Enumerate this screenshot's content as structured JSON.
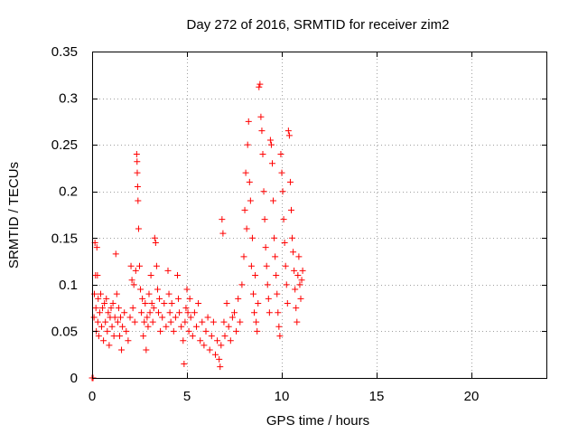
{
  "chart_data": {
    "type": "scatter",
    "title": "Day 272 of 2016, SRMTID for receiver zim2",
    "xlabel": "GPS time / hours",
    "ylabel": "SRMTID / TECUs",
    "xlim": [
      0,
      24
    ],
    "ylim": [
      0,
      0.35
    ],
    "xticks": [
      0,
      5,
      10,
      15,
      20
    ],
    "yticks": [
      0,
      0.05,
      0.1,
      0.15,
      0.2,
      0.25,
      0.3,
      0.35
    ],
    "ytick_labels": [
      "0",
      "0.05",
      "0.1",
      "0.15",
      "0.2",
      "0.25",
      "0.3",
      "0.35"
    ],
    "grid": true,
    "marker": "+",
    "series_color": "#ff0000",
    "series": [
      {
        "name": "SRMTID",
        "points": [
          [
            0.0,
            0.0
          ],
          [
            0.02,
            0.0
          ],
          [
            0.05,
            0.0
          ],
          [
            0.1,
            0.065
          ],
          [
            0.12,
            0.09
          ],
          [
            0.15,
            0.145
          ],
          [
            0.18,
            0.11
          ],
          [
            0.2,
            0.075
          ],
          [
            0.22,
            0.05
          ],
          [
            0.25,
            0.14
          ],
          [
            0.28,
            0.11
          ],
          [
            0.3,
            0.06
          ],
          [
            0.32,
            0.085
          ],
          [
            0.35,
            0.045
          ],
          [
            0.4,
            0.07
          ],
          [
            0.45,
            0.09
          ],
          [
            0.5,
            0.055
          ],
          [
            0.55,
            0.075
          ],
          [
            0.6,
            0.04
          ],
          [
            0.65,
            0.08
          ],
          [
            0.7,
            0.06
          ],
          [
            0.75,
            0.085
          ],
          [
            0.8,
            0.05
          ],
          [
            0.85,
            0.07
          ],
          [
            0.9,
            0.035
          ],
          [
            0.95,
            0.065
          ],
          [
            1.0,
            0.075
          ],
          [
            1.05,
            0.055
          ],
          [
            1.1,
            0.08
          ],
          [
            1.15,
            0.045
          ],
          [
            1.2,
            0.065
          ],
          [
            1.25,
            0.133
          ],
          [
            1.3,
            0.09
          ],
          [
            1.35,
            0.06
          ],
          [
            1.4,
            0.075
          ],
          [
            1.45,
            0.045
          ],
          [
            1.5,
            0.065
          ],
          [
            1.55,
            0.03
          ],
          [
            1.6,
            0.055
          ],
          [
            1.7,
            0.07
          ],
          [
            1.8,
            0.05
          ],
          [
            1.9,
            0.04
          ],
          [
            2.0,
            0.065
          ],
          [
            2.05,
            0.12
          ],
          [
            2.1,
            0.105
          ],
          [
            2.15,
            0.075
          ],
          [
            2.2,
            0.1
          ],
          [
            2.25,
            0.06
          ],
          [
            2.3,
            0.115
          ],
          [
            2.35,
            0.24
          ],
          [
            2.37,
            0.232
          ],
          [
            2.38,
            0.22
          ],
          [
            2.4,
            0.205
          ],
          [
            2.42,
            0.19
          ],
          [
            2.45,
            0.16
          ],
          [
            2.5,
            0.12
          ],
          [
            2.55,
            0.095
          ],
          [
            2.6,
            0.07
          ],
          [
            2.65,
            0.085
          ],
          [
            2.7,
            0.045
          ],
          [
            2.75,
            0.06
          ],
          [
            2.8,
            0.08
          ],
          [
            2.85,
            0.03
          ],
          [
            2.9,
            0.065
          ],
          [
            2.95,
            0.055
          ],
          [
            3.0,
            0.09
          ],
          [
            3.05,
            0.07
          ],
          [
            3.1,
            0.11
          ],
          [
            3.15,
            0.08
          ],
          [
            3.2,
            0.06
          ],
          [
            3.25,
            0.075
          ],
          [
            3.3,
            0.15
          ],
          [
            3.35,
            0.145
          ],
          [
            3.4,
            0.12
          ],
          [
            3.45,
            0.095
          ],
          [
            3.5,
            0.07
          ],
          [
            3.55,
            0.085
          ],
          [
            3.6,
            0.05
          ],
          [
            3.7,
            0.065
          ],
          [
            3.8,
            0.08
          ],
          [
            3.9,
            0.055
          ],
          [
            4.0,
            0.115
          ],
          [
            4.05,
            0.09
          ],
          [
            4.1,
            0.07
          ],
          [
            4.15,
            0.06
          ],
          [
            4.2,
            0.08
          ],
          [
            4.3,
            0.05
          ],
          [
            4.4,
            0.065
          ],
          [
            4.5,
            0.11
          ],
          [
            4.55,
            0.085
          ],
          [
            4.6,
            0.07
          ],
          [
            4.7,
            0.055
          ],
          [
            4.8,
            0.04
          ],
          [
            4.85,
            0.015
          ],
          [
            4.9,
            0.06
          ],
          [
            4.95,
            0.075
          ],
          [
            5.0,
            0.095
          ],
          [
            5.05,
            0.07
          ],
          [
            5.1,
            0.05
          ],
          [
            5.15,
            0.085
          ],
          [
            5.2,
            0.065
          ],
          [
            5.3,
            0.045
          ],
          [
            5.4,
            0.07
          ],
          [
            5.5,
            0.055
          ],
          [
            5.6,
            0.08
          ],
          [
            5.7,
            0.04
          ],
          [
            5.8,
            0.06
          ],
          [
            5.9,
            0.035
          ],
          [
            6.0,
            0.05
          ],
          [
            6.1,
            0.065
          ],
          [
            6.2,
            0.03
          ],
          [
            6.3,
            0.045
          ],
          [
            6.4,
            0.06
          ],
          [
            6.5,
            0.025
          ],
          [
            6.6,
            0.04
          ],
          [
            6.7,
            0.02
          ],
          [
            6.75,
            0.012
          ],
          [
            6.8,
            0.035
          ],
          [
            6.85,
            0.17
          ],
          [
            6.9,
            0.155
          ],
          [
            6.95,
            0.06
          ],
          [
            7.0,
            0.045
          ],
          [
            7.1,
            0.08
          ],
          [
            7.2,
            0.055
          ],
          [
            7.3,
            0.04
          ],
          [
            7.4,
            0.065
          ],
          [
            7.5,
            0.07
          ],
          [
            7.6,
            0.05
          ],
          [
            7.7,
            0.085
          ],
          [
            7.8,
            0.06
          ],
          [
            7.9,
            0.1
          ],
          [
            8.0,
            0.13
          ],
          [
            8.05,
            0.18
          ],
          [
            8.1,
            0.22
          ],
          [
            8.15,
            0.16
          ],
          [
            8.2,
            0.25
          ],
          [
            8.25,
            0.275
          ],
          [
            8.3,
            0.21
          ],
          [
            8.35,
            0.19
          ],
          [
            8.4,
            0.12
          ],
          [
            8.45,
            0.15
          ],
          [
            8.5,
            0.09
          ],
          [
            8.55,
            0.07
          ],
          [
            8.6,
            0.11
          ],
          [
            8.65,
            0.06
          ],
          [
            8.7,
            0.05
          ],
          [
            8.75,
            0.08
          ],
          [
            8.8,
            0.312
          ],
          [
            8.85,
            0.315
          ],
          [
            8.9,
            0.28
          ],
          [
            8.95,
            0.265
          ],
          [
            9.0,
            0.24
          ],
          [
            9.05,
            0.2
          ],
          [
            9.1,
            0.17
          ],
          [
            9.15,
            0.14
          ],
          [
            9.2,
            0.12
          ],
          [
            9.25,
            0.1
          ],
          [
            9.3,
            0.085
          ],
          [
            9.35,
            0.07
          ],
          [
            9.4,
            0.255
          ],
          [
            9.45,
            0.25
          ],
          [
            9.5,
            0.23
          ],
          [
            9.55,
            0.19
          ],
          [
            9.6,
            0.15
          ],
          [
            9.65,
            0.13
          ],
          [
            9.7,
            0.11
          ],
          [
            9.75,
            0.09
          ],
          [
            9.8,
            0.07
          ],
          [
            9.85,
            0.055
          ],
          [
            9.9,
            0.045
          ],
          [
            9.95,
            0.24
          ],
          [
            10.0,
            0.22
          ],
          [
            10.05,
            0.2
          ],
          [
            10.1,
            0.17
          ],
          [
            10.15,
            0.145
          ],
          [
            10.2,
            0.12
          ],
          [
            10.25,
            0.1
          ],
          [
            10.3,
            0.08
          ],
          [
            10.35,
            0.265
          ],
          [
            10.4,
            0.26
          ],
          [
            10.45,
            0.21
          ],
          [
            10.5,
            0.18
          ],
          [
            10.55,
            0.15
          ],
          [
            10.6,
            0.135
          ],
          [
            10.65,
            0.115
          ],
          [
            10.7,
            0.095
          ],
          [
            10.75,
            0.075
          ],
          [
            10.8,
            0.06
          ],
          [
            10.85,
            0.11
          ],
          [
            10.9,
            0.13
          ],
          [
            10.95,
            0.1
          ],
          [
            11.0,
            0.085
          ],
          [
            11.05,
            0.105
          ],
          [
            11.1,
            0.115
          ]
        ]
      }
    ]
  }
}
